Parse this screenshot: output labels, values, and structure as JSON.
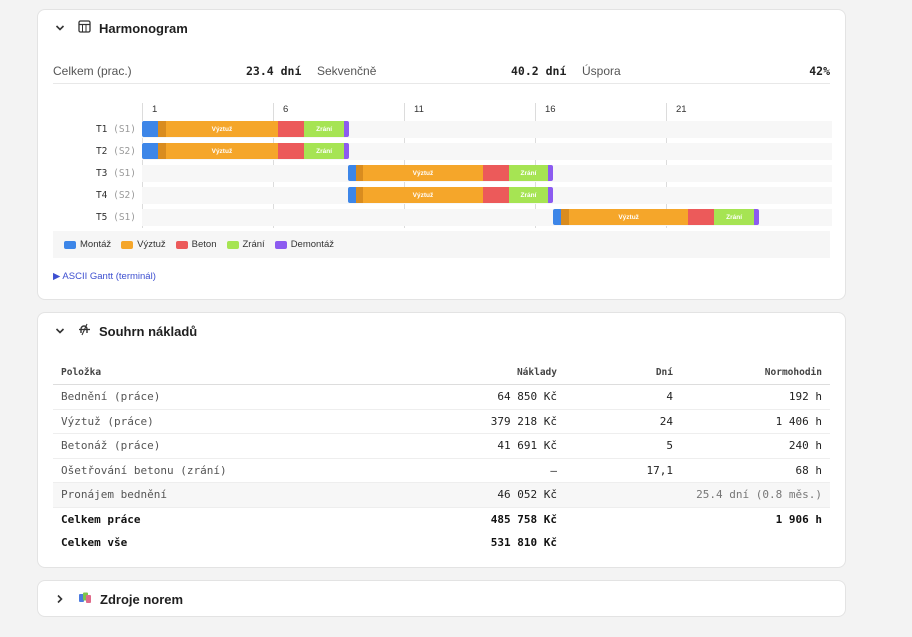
{
  "harmonogram": {
    "title": "Harmonogram",
    "stats": {
      "total_label": "Celkem (prac.)",
      "total_value": "23.4 dní",
      "seq_label": "Sekvenčně",
      "seq_value": "40.2 dní",
      "saving_label": "Úspora",
      "saving_value": "42%"
    },
    "ticks": [
      "1",
      "6",
      "11",
      "16",
      "21"
    ],
    "rows": [
      {
        "task": "T1",
        "section": "(S1)",
        "start": 0,
        "segments": [
          [
            "montaz",
            0.6,
            ""
          ],
          [
            "vyztuz_dark",
            0.3,
            ""
          ],
          [
            "vyztuz",
            4.3,
            "Výztuž"
          ],
          [
            "beton",
            1.0,
            ""
          ],
          [
            "zrani",
            1.5,
            "Zrání"
          ],
          [
            "demontaz",
            0.2,
            ""
          ]
        ]
      },
      {
        "task": "T2",
        "section": "(S2)",
        "start": 0,
        "segments": [
          [
            "montaz",
            0.6,
            ""
          ],
          [
            "vyztuz_dark",
            0.3,
            ""
          ],
          [
            "vyztuz",
            4.3,
            "Výztuž"
          ],
          [
            "beton",
            1.0,
            ""
          ],
          [
            "zrani",
            1.5,
            "Zrání"
          ],
          [
            "demontaz",
            0.2,
            ""
          ]
        ]
      },
      {
        "task": "T3",
        "section": "(S1)",
        "start": 7.85,
        "segments": [
          [
            "montaz",
            0.3,
            ""
          ],
          [
            "vyztuz_dark",
            0.3,
            ""
          ],
          [
            "vyztuz",
            4.55,
            "Výztuž"
          ],
          [
            "beton",
            1.0,
            ""
          ],
          [
            "zrani",
            1.5,
            "Zrání"
          ],
          [
            "demontaz",
            0.2,
            ""
          ]
        ]
      },
      {
        "task": "T4",
        "section": "(S2)",
        "start": 7.85,
        "segments": [
          [
            "montaz",
            0.3,
            ""
          ],
          [
            "vyztuz_dark",
            0.3,
            ""
          ],
          [
            "vyztuz",
            4.55,
            "Výztuž"
          ],
          [
            "beton",
            1.0,
            ""
          ],
          [
            "zrani",
            1.5,
            "Zrání"
          ],
          [
            "demontaz",
            0.2,
            ""
          ]
        ]
      },
      {
        "task": "T5",
        "section": "(S1)",
        "start": 15.7,
        "segments": [
          [
            "montaz",
            0.3,
            ""
          ],
          [
            "vyztuz_dark",
            0.3,
            ""
          ],
          [
            "vyztuz",
            4.55,
            "Výztuž"
          ],
          [
            "beton",
            1.0,
            ""
          ],
          [
            "zrani",
            1.5,
            "Zrání"
          ],
          [
            "demontaz",
            0.2,
            ""
          ]
        ]
      }
    ],
    "colors": {
      "montaz": "#3d86e8",
      "vyztuz_dark": "#d98c1f",
      "vyztuz": "#f5a62a",
      "beton": "#ec5a5a",
      "zrani": "#a6e453",
      "demontaz": "#8c5bf0"
    },
    "legend": [
      {
        "key": "montaz",
        "label": "Montáž"
      },
      {
        "key": "vyztuz",
        "label": "Výztuž"
      },
      {
        "key": "beton",
        "label": "Beton"
      },
      {
        "key": "zrani",
        "label": "Zrání"
      },
      {
        "key": "demontaz",
        "label": "Demontáž"
      }
    ],
    "ascii_label": "▶ ASCII Gantt (terminál)"
  },
  "costs": {
    "title": "Souhrn nákladů",
    "headers": {
      "item": "Položka",
      "cost": "Náklady",
      "days": "Dní",
      "hours": "Normohodin"
    },
    "rows": [
      {
        "item": "Bednění (práce)",
        "cost": "64 850 Kč",
        "days": "4",
        "hours": "192 h"
      },
      {
        "item": "Výztuž (práce)",
        "cost": "379 218 Kč",
        "days": "24",
        "hours": "1 406 h"
      },
      {
        "item": "Betonáž (práce)",
        "cost": "41 691 Kč",
        "days": "5",
        "hours": "240 h"
      },
      {
        "item": "Ošetřování betonu (zrání)",
        "cost": "—",
        "days": "17,1",
        "hours": "68 h"
      }
    ],
    "rental": {
      "item": "Pronájem bednění",
      "cost": "46 052 Kč",
      "note": "25.4 dní (0.8 měs.)"
    },
    "total_work": {
      "item": "Celkem práce",
      "cost": "485 758 Kč",
      "hours": "1 906 h"
    },
    "total_all": {
      "item": "Celkem vše",
      "cost": "531 810 Kč"
    }
  },
  "sources": {
    "title": "Zdroje norem"
  }
}
